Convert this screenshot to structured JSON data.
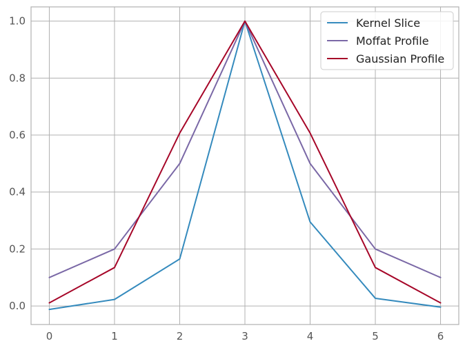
{
  "chart_data": {
    "type": "line",
    "x": [
      0,
      1,
      2,
      3,
      4,
      5,
      6
    ],
    "xlim": [
      -0.28,
      6.28
    ],
    "ylim": [
      -0.065,
      1.05
    ],
    "xticks": [
      0,
      1,
      2,
      3,
      4,
      5,
      6
    ],
    "yticks": [
      0.0,
      0.2,
      0.4,
      0.6,
      0.8,
      1.0
    ],
    "xtick_labels": [
      "0",
      "1",
      "2",
      "3",
      "4",
      "5",
      "6"
    ],
    "ytick_labels": [
      "0.0",
      "0.2",
      "0.4",
      "0.6",
      "0.8",
      "1.0"
    ],
    "grid": true,
    "legend_position": "top-right",
    "series": [
      {
        "name": "Kernel Slice",
        "color": "#348abd",
        "values": [
          -0.012,
          0.023,
          0.165,
          1.0,
          0.295,
          0.027,
          -0.004
        ]
      },
      {
        "name": "Moffat Profile",
        "color": "#7a68a6",
        "values": [
          0.1,
          0.2,
          0.5,
          1.0,
          0.5,
          0.2,
          0.1
        ]
      },
      {
        "name": "Gaussian Profile",
        "color": "#a60628",
        "values": [
          0.011,
          0.135,
          0.607,
          1.0,
          0.607,
          0.135,
          0.011
        ]
      }
    ]
  }
}
